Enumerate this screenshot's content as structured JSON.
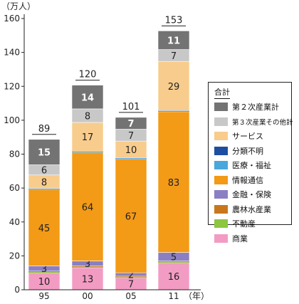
{
  "chart_data": {
    "type": "bar",
    "stacked": true,
    "y_unit_label": "（万人）",
    "x_unit_label": "（年）",
    "categories": [
      "95",
      "00",
      "05",
      "11"
    ],
    "totals": [
      89,
      120,
      101,
      153
    ],
    "ylim": [
      0,
      160
    ],
    "yticks": [
      0,
      20,
      40,
      60,
      80,
      100,
      120,
      140,
      160
    ],
    "grid": false,
    "legend_title": "合計",
    "legend_position": "right",
    "series": [
      {
        "name": "商業",
        "color": "#f29cc3",
        "values": [
          10,
          13,
          7,
          16
        ],
        "labels": [
          "10",
          "13",
          "7",
          "16"
        ]
      },
      {
        "name": "不動産",
        "color": "#8dc63f",
        "values": [
          0.5,
          0.5,
          0.5,
          0.5
        ],
        "labels": [
          "",
          "",
          "",
          ""
        ]
      },
      {
        "name": "農林水産業",
        "color": "#c9771d",
        "values": [
          0.5,
          0.5,
          0.5,
          0.5
        ],
        "labels": [
          "",
          "",
          "",
          ""
        ]
      },
      {
        "name": "金融・保険",
        "color": "#8b7fc4",
        "values": [
          3,
          3,
          2,
          5
        ],
        "labels": [
          "3",
          "3",
          "2",
          "5"
        ]
      },
      {
        "name": "情報通信",
        "color": "#f39a16",
        "values": [
          45,
          64,
          67,
          83
        ],
        "labels": [
          "45",
          "64",
          "67",
          "83"
        ]
      },
      {
        "name": "医療・福祉",
        "color": "#49a7dc",
        "values": [
          0.5,
          0.5,
          0.5,
          0.5
        ],
        "labels": [
          "",
          "",
          "",
          ""
        ]
      },
      {
        "name": "分類不明",
        "color": "#1f4ea1",
        "values": [
          0.2,
          0.2,
          0.2,
          0.2
        ],
        "labels": [
          "",
          "",
          "",
          ""
        ]
      },
      {
        "name": "サービス",
        "color": "#f8cc8c",
        "values": [
          8,
          17,
          10,
          29
        ],
        "labels": [
          "8",
          "17",
          "10",
          "29"
        ]
      },
      {
        "name": "第３次産業その他計",
        "color": "#c8c8c8",
        "values": [
          6,
          8,
          7,
          7
        ],
        "labels": [
          "6",
          "8",
          "7",
          "7"
        ]
      },
      {
        "name": "第２次産業計",
        "color": "#737373",
        "values": [
          15,
          14,
          7,
          11
        ],
        "labels": [
          "15",
          "14",
          "7",
          "11"
        ]
      }
    ]
  }
}
